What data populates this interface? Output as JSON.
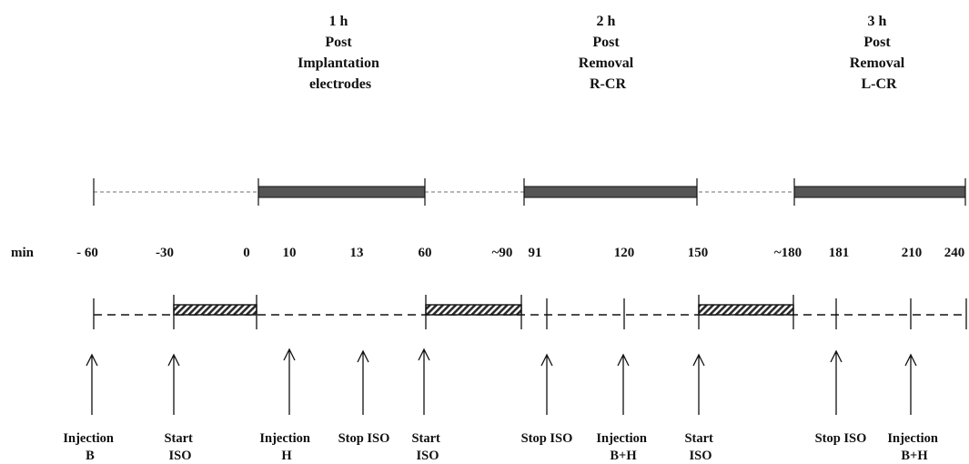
{
  "headers": [
    {
      "lines": [
        "1 h",
        "Post",
        "Implantation",
        "electrodes"
      ]
    },
    {
      "lines": [
        "2 h",
        "Post",
        "Removal",
        "R-CR"
      ]
    },
    {
      "lines": [
        "3 h",
        "Post",
        "Removal",
        "L-CR"
      ]
    }
  ],
  "axis_unit": "min",
  "ticks": [
    "- 60",
    "-30",
    "0",
    "10",
    "13",
    "60",
    "~90",
    "91",
    "120",
    "150",
    "~180",
    "181",
    "210",
    "240"
  ],
  "events": [
    {
      "lines": [
        "Injection",
        "B"
      ]
    },
    {
      "lines": [
        "Start",
        "ISO"
      ]
    },
    {
      "lines": [
        "Injection",
        "H"
      ]
    },
    {
      "lines": [
        "Stop ISO"
      ]
    },
    {
      "lines": [
        "Start",
        "ISO"
      ]
    },
    {
      "lines": [
        "Stop ISO"
      ]
    },
    {
      "lines": [
        "Injection",
        "B+H"
      ]
    },
    {
      "lines": [
        "Start",
        "ISO"
      ]
    },
    {
      "lines": [
        "Stop ISO"
      ]
    },
    {
      "lines": [
        "Injection",
        "B+H"
      ]
    }
  ],
  "colors": {
    "ink": "#111111",
    "dash": "#8a8a8a",
    "bar_fill": "#555555"
  }
}
